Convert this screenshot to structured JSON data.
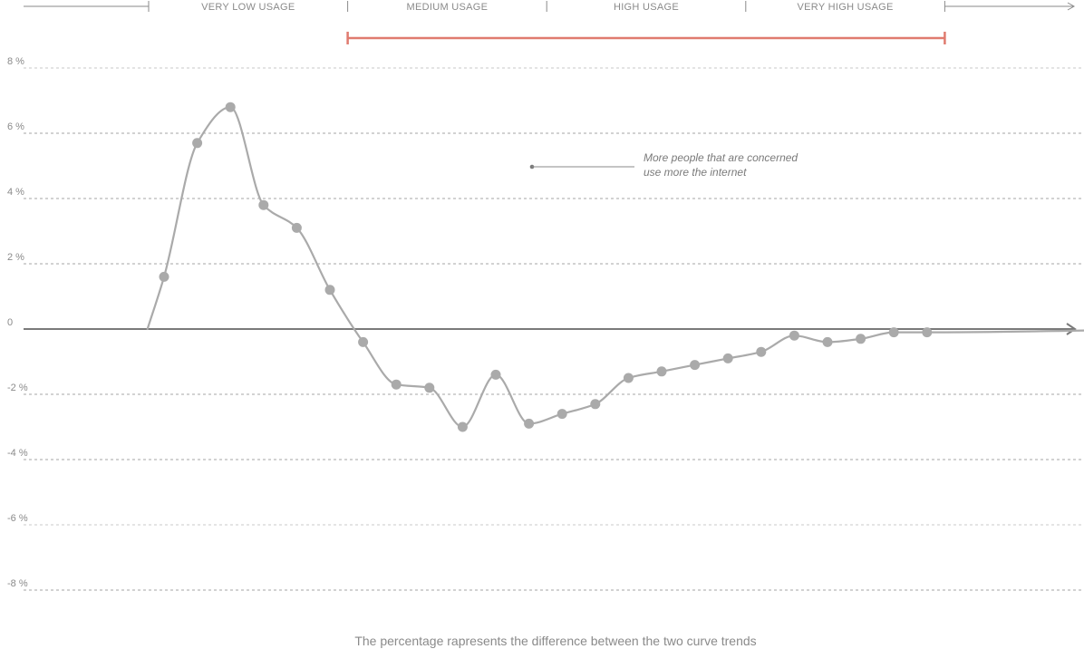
{
  "chart_data": {
    "type": "line",
    "title": "",
    "xlabel": "",
    "ylabel": "",
    "ylim": [
      -8,
      8
    ],
    "y_ticks": [
      {
        "value": 8,
        "label": "8 %"
      },
      {
        "value": 6,
        "label": "6 %"
      },
      {
        "value": 4,
        "label": "4 %"
      },
      {
        "value": 2,
        "label": "2 %"
      },
      {
        "value": 0,
        "label": "0"
      },
      {
        "value": -2,
        "label": "-2 %"
      },
      {
        "value": -4,
        "label": "-4 %"
      },
      {
        "value": -6,
        "label": "-6 %"
      },
      {
        "value": -8,
        "label": "-8 %"
      }
    ],
    "grid": true,
    "usage_bands": [
      {
        "label": "VERY LOW USAGE",
        "start": 0,
        "end": 6
      },
      {
        "label": "MEDIUM USAGE",
        "start": 6,
        "end": 12
      },
      {
        "label": "HIGH USAGE",
        "start": 12,
        "end": 18
      },
      {
        "label": "VERY HIGH USAGE",
        "start": 18,
        "end": 24
      }
    ],
    "highlight_range": {
      "start": 6,
      "end": 24,
      "color": "#e07b6f"
    },
    "series": [
      {
        "color": "#aaaaaa",
        "start": {
          "x": -0.5,
          "y": 0
        },
        "end": {
          "x": 30.5,
          "y": 0
        },
        "points": [
          {
            "x": 0,
            "y": 1.6
          },
          {
            "x": 1,
            "y": 5.7
          },
          {
            "x": 2,
            "y": 6.8
          },
          {
            "x": 3,
            "y": 3.8
          },
          {
            "x": 4,
            "y": 3.1
          },
          {
            "x": 5,
            "y": 1.2
          },
          {
            "x": 6,
            "y": -0.4
          },
          {
            "x": 7,
            "y": -1.7
          },
          {
            "x": 8,
            "y": -1.8
          },
          {
            "x": 9,
            "y": -3.0
          },
          {
            "x": 10,
            "y": -1.4
          },
          {
            "x": 11,
            "y": -2.9
          },
          {
            "x": 12,
            "y": -2.6
          },
          {
            "x": 13,
            "y": -2.3
          },
          {
            "x": 14,
            "y": -1.5
          },
          {
            "x": 15,
            "y": -1.3
          },
          {
            "x": 16,
            "y": -1.1
          },
          {
            "x": 17,
            "y": -0.9
          },
          {
            "x": 18,
            "y": -0.7
          },
          {
            "x": 19,
            "y": -0.2
          },
          {
            "x": 20,
            "y": -0.4
          },
          {
            "x": 21,
            "y": -0.3
          },
          {
            "x": 22,
            "y": -0.1
          },
          {
            "x": 23,
            "y": -0.1
          }
        ]
      }
    ],
    "annotation": {
      "lines": [
        "More people  that are concerned",
        "use more the internet"
      ]
    },
    "footnote": "The percentage rapresents the difference between the two curve trends"
  },
  "colors": {
    "curve": "#aaaaaa",
    "axis": "#7a7a7a",
    "highlight": "#e07b6f"
  }
}
